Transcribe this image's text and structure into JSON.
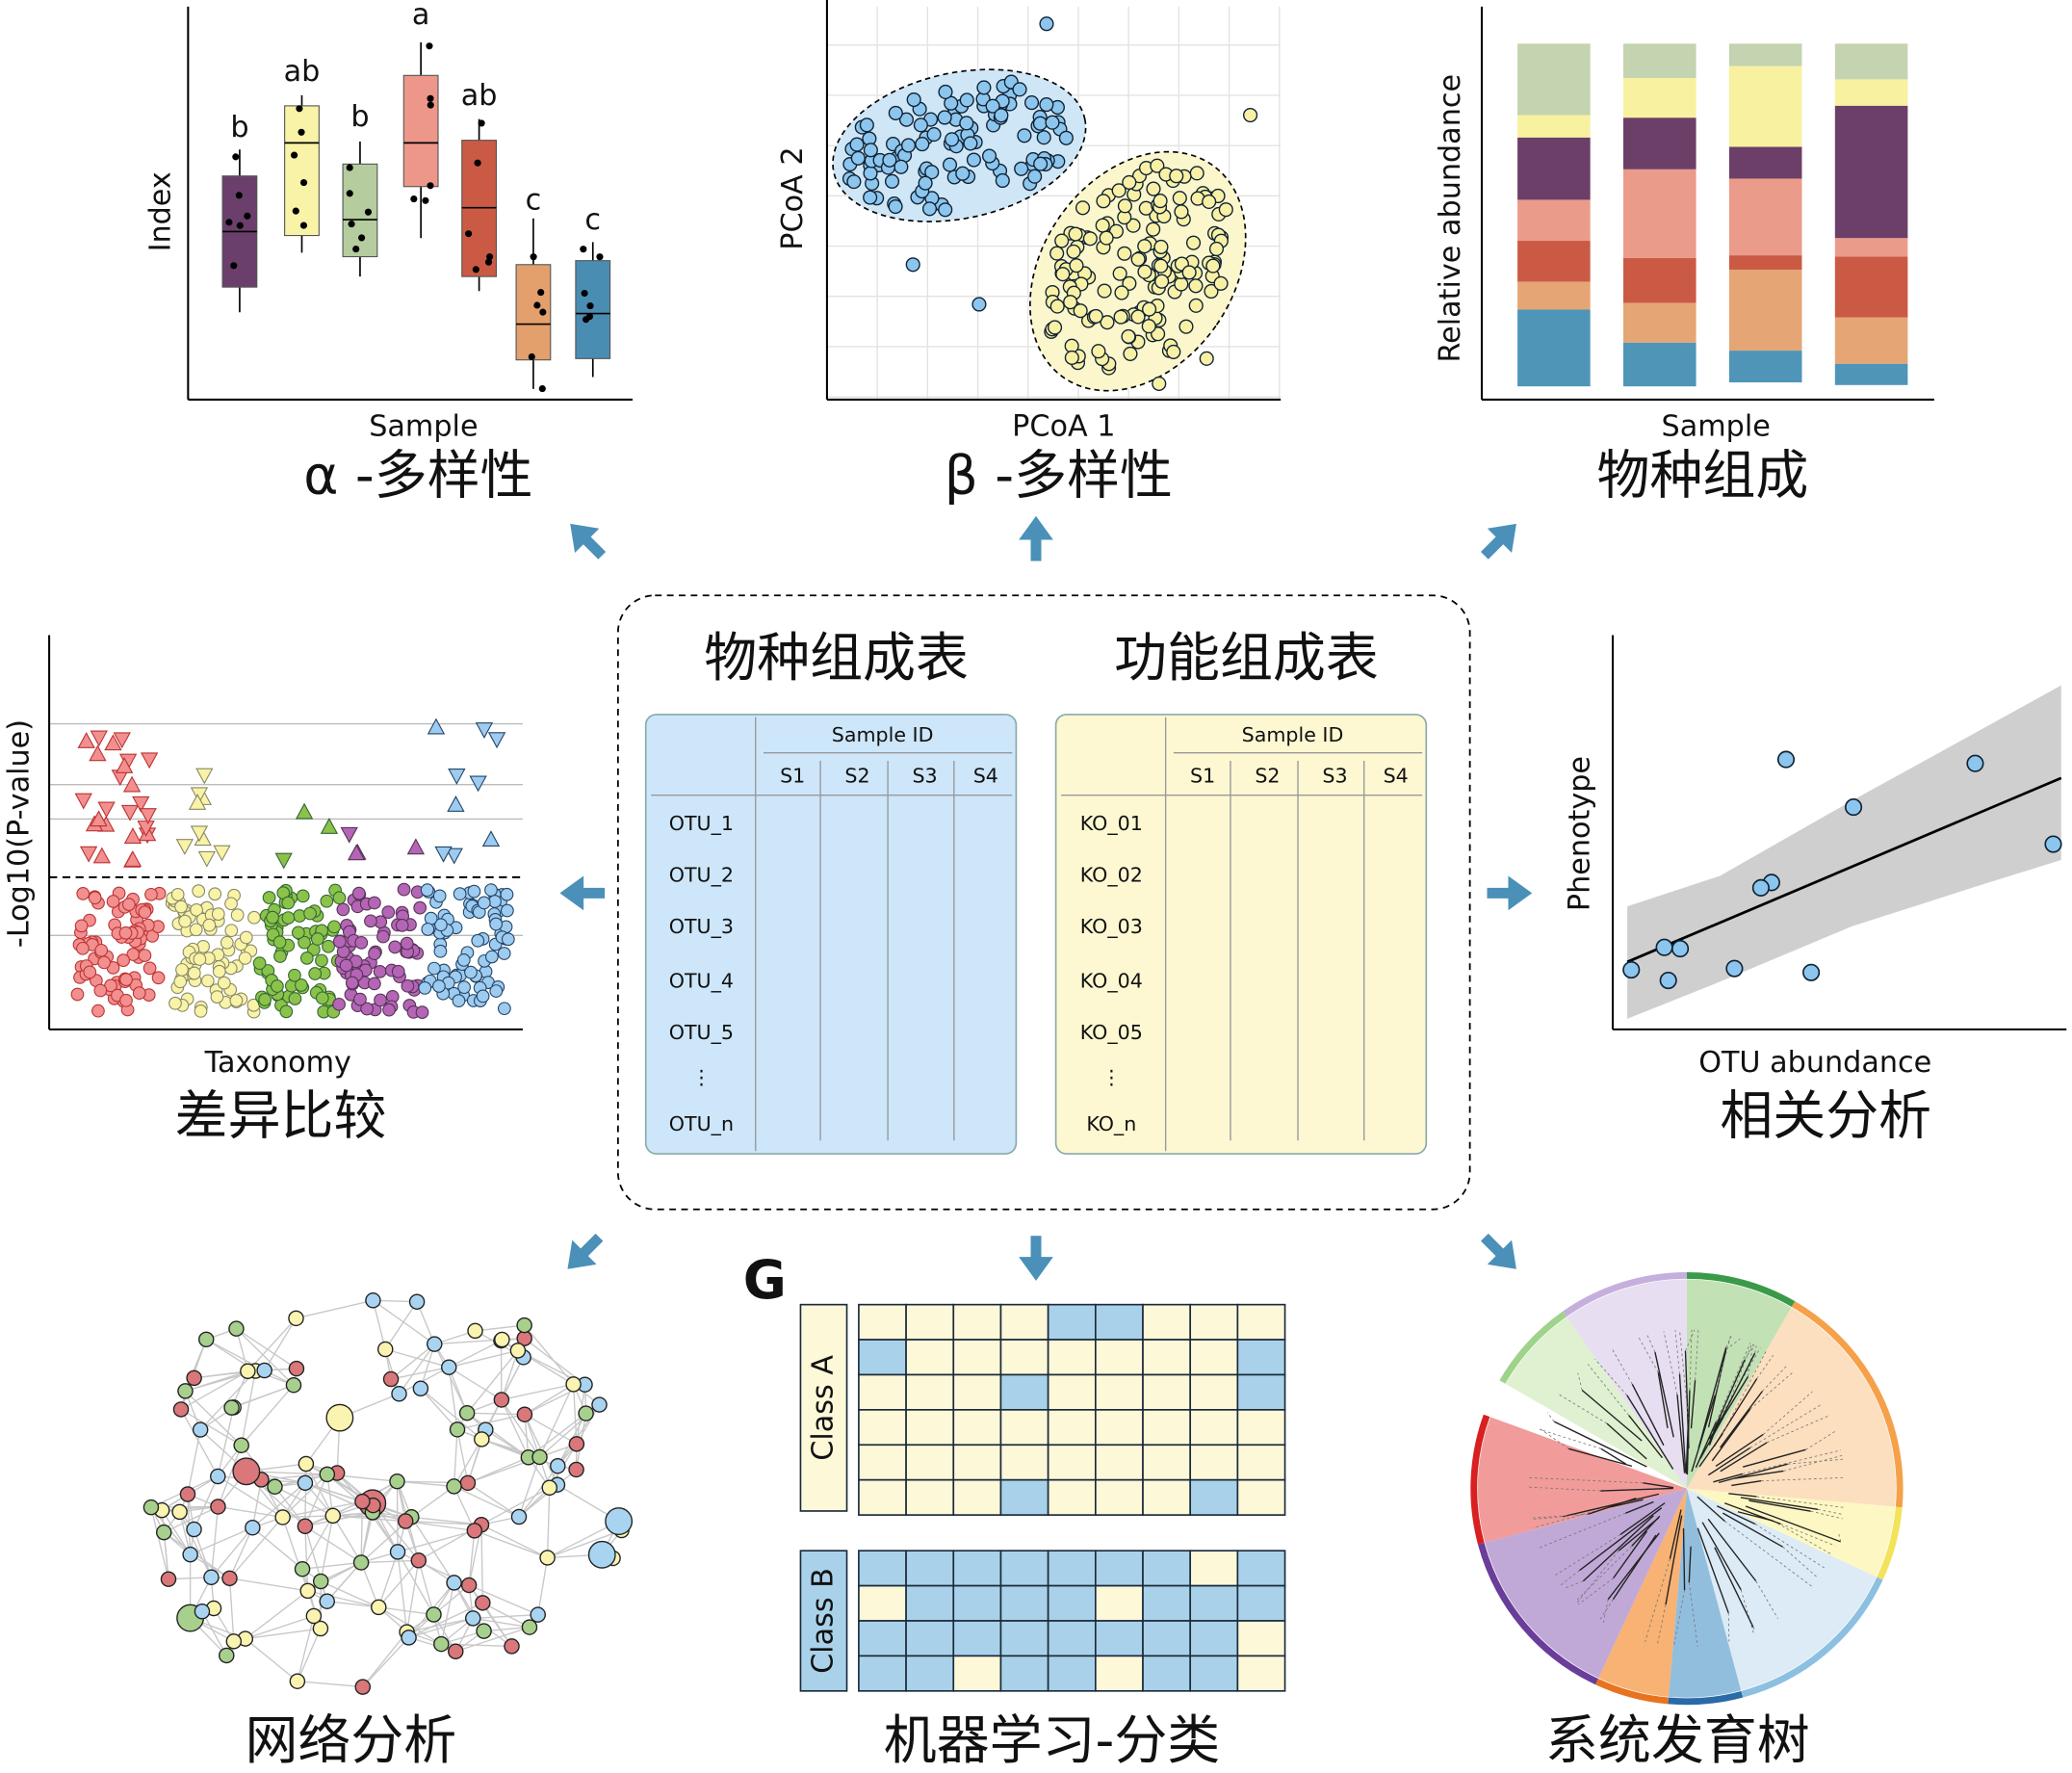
{
  "panels": {
    "alpha": {
      "title": "α -多样性",
      "y_label": "Index",
      "x_label": "Sample",
      "group_letters": [
        "b",
        "ab",
        "b",
        "a",
        "ab",
        "c",
        "c"
      ]
    },
    "beta": {
      "title": "β -多样性",
      "y_label": "PCoA 2",
      "x_label": "PCoA 1"
    },
    "composition": {
      "title": "物种组成",
      "y_label": "Relative abundance",
      "x_label": "Sample"
    },
    "differential": {
      "title": "差异比较",
      "y_label": "-Log10(P-value)",
      "x_label": "Taxonomy"
    },
    "correlation": {
      "title": "相关分析",
      "y_label": "Phenotype",
      "x_label": "OTU abundance"
    },
    "network": {
      "title": "网络分析"
    },
    "classification": {
      "panel_letter": "G",
      "title": "机器学习-分类",
      "classes": [
        "Class A",
        "Class B"
      ]
    },
    "phylogeny": {
      "title": "系统发育树"
    }
  },
  "tables": [
    {
      "title": "物种组成表",
      "header": "Sample ID",
      "columns": [
        "S1",
        "S2",
        "S3",
        "S4"
      ],
      "rows": [
        "OTU_1",
        "OTU_2",
        "OTU_3",
        "OTU_4",
        "OTU_5",
        "⋮",
        "OTU_n"
      ]
    },
    {
      "title": "功能组成表",
      "header": "Sample ID",
      "columns": [
        "S1",
        "S2",
        "S3",
        "S4"
      ],
      "rows": [
        "KO_01",
        "KO_02",
        "KO_03",
        "KO_04",
        "KO_05",
        "⋮",
        "KO_n"
      ]
    }
  ]
}
